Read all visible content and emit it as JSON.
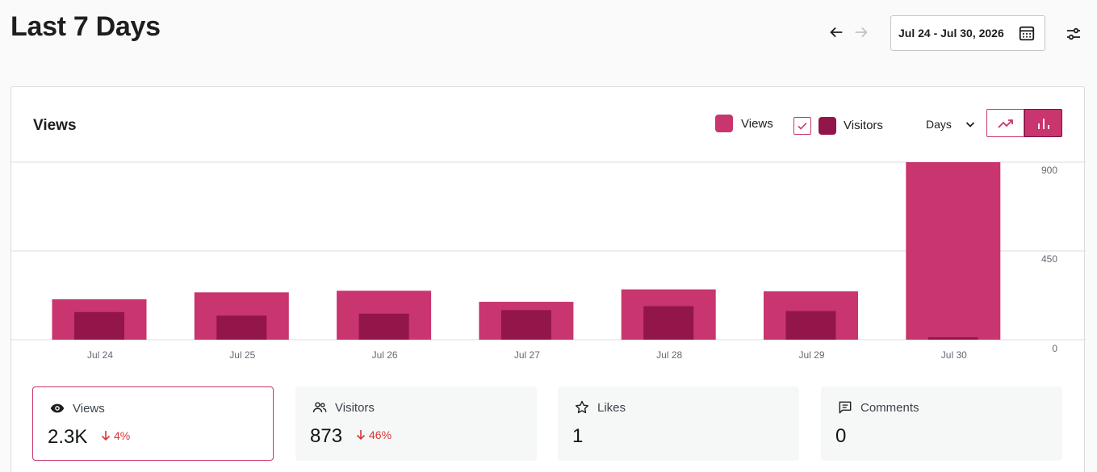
{
  "header": {
    "title": "Last 7 Days",
    "date_range": "Jul 24 - Jul 30, 2026"
  },
  "chart_panel": {
    "title": "Views",
    "legend": {
      "views": "Views",
      "visitors": "Visitors"
    },
    "period": "Days"
  },
  "chart_data": {
    "type": "bar",
    "categories": [
      "Jul 24",
      "Jul 25",
      "Jul 26",
      "Jul 27",
      "Jul 28",
      "Jul 29",
      "Jul 30"
    ],
    "series": [
      {
        "name": "Views",
        "values": [
          205,
          240,
          248,
          192,
          255,
          245,
          900
        ],
        "color": "#c9356e"
      },
      {
        "name": "Visitors",
        "values": [
          140,
          122,
          132,
          150,
          170,
          145,
          12
        ],
        "color": "#92164a"
      }
    ],
    "ylim": [
      0,
      900
    ],
    "yticks": [
      "0",
      "450",
      "900"
    ],
    "grid": true,
    "legend": "top-right"
  },
  "stats": [
    {
      "icon": "eye-icon",
      "label": "Views",
      "value": "2.3K",
      "change": "4%"
    },
    {
      "icon": "people-icon",
      "label": "Visitors",
      "value": "873",
      "change": "46%"
    },
    {
      "icon": "star-icon",
      "label": "Likes",
      "value": "1",
      "change": ""
    },
    {
      "icon": "comment-icon",
      "label": "Comments",
      "value": "0",
      "change": ""
    }
  ]
}
